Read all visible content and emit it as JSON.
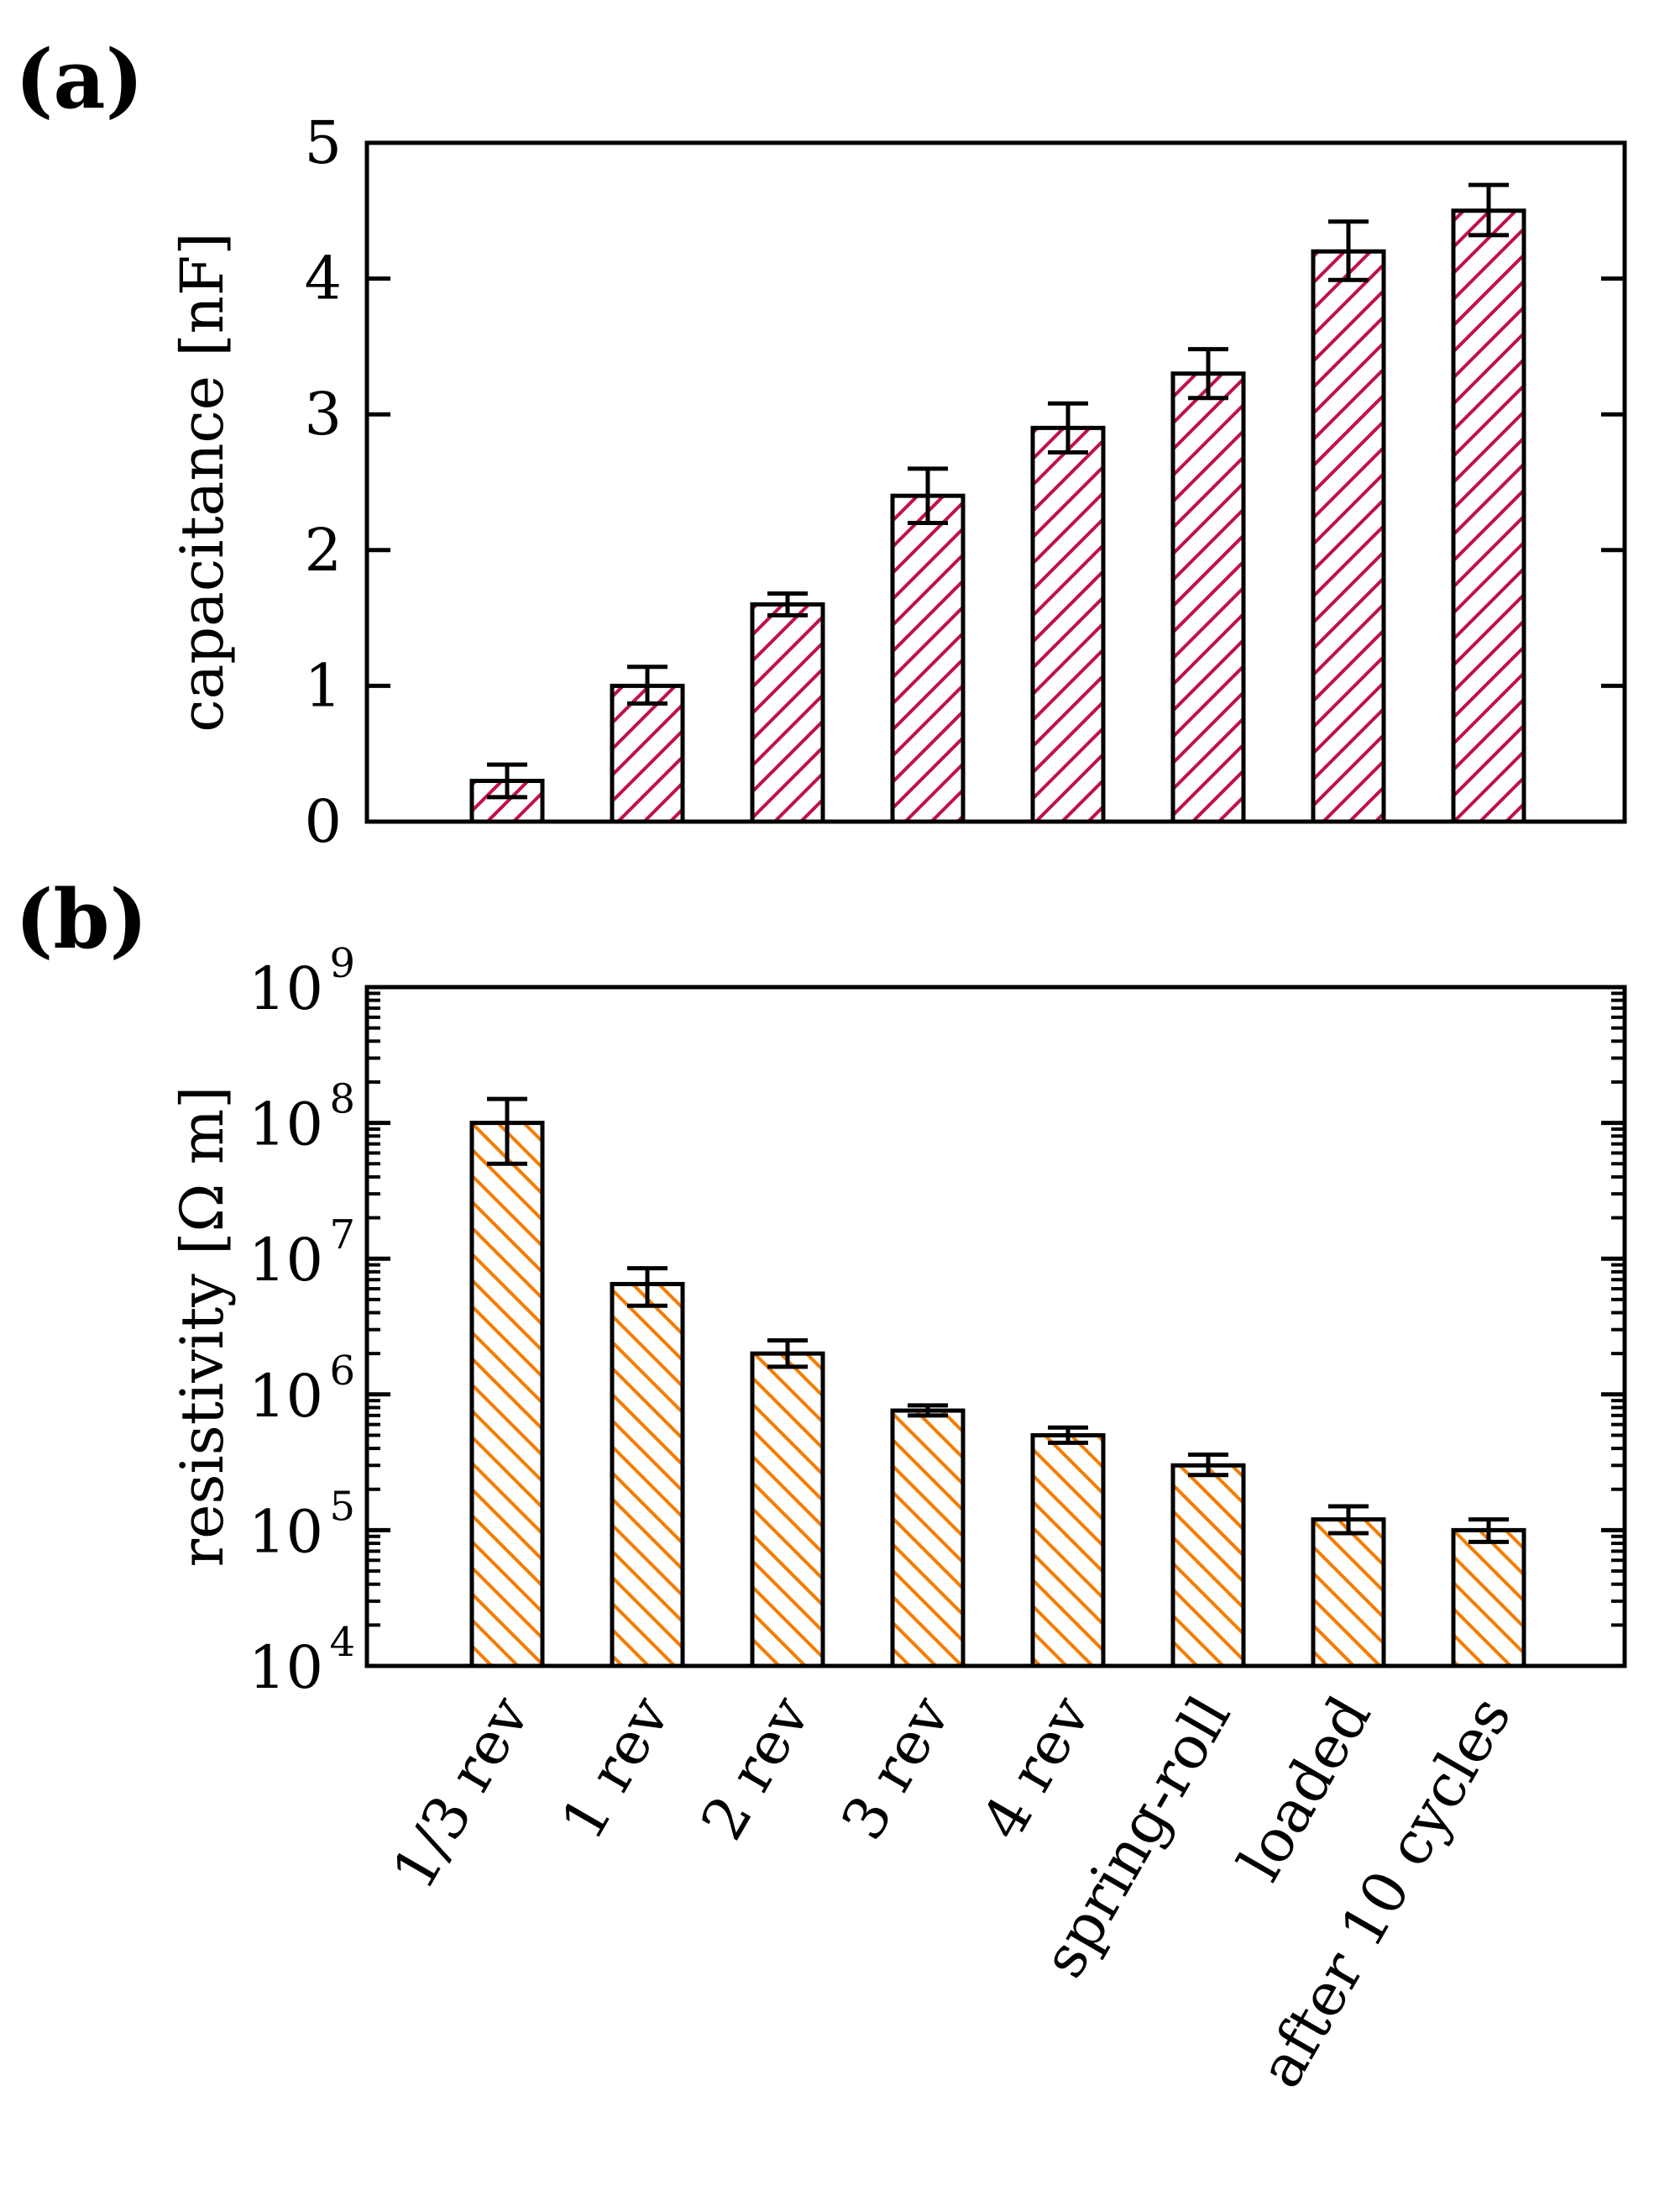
{
  "figure": {
    "panel_a_label": "(a)",
    "panel_b_label": "(b)"
  },
  "chart_data": [
    {
      "type": "bar",
      "panel": "(a)",
      "title": "",
      "xlabel": "",
      "ylabel": "capacitance [nF]",
      "ylim": [
        0,
        5
      ],
      "yticks": [
        0,
        1,
        2,
        3,
        4,
        5
      ],
      "ytick_labels": [
        "0",
        "1",
        "2",
        "3",
        "4",
        "5"
      ],
      "yscale": "linear",
      "grid": false,
      "categories": [
        "1/3 rev",
        "1 rev",
        "2 rev",
        "3 rev",
        "4 rev",
        "spring-roll",
        "loaded",
        "after 10 cycles"
      ],
      "series": [
        {
          "name": "capacitance",
          "values": [
            0.3,
            1.0,
            1.6,
            2.4,
            2.9,
            3.3,
            4.2,
            4.5
          ],
          "err_low": [
            0.18,
            0.87,
            1.52,
            2.2,
            2.72,
            3.12,
            3.99,
            4.32
          ],
          "err_high": [
            0.42,
            1.14,
            1.68,
            2.6,
            3.08,
            3.48,
            4.42,
            4.69
          ],
          "color": "#c0104e",
          "hatch": "forward-diagonal"
        }
      ]
    },
    {
      "type": "bar",
      "panel": "(b)",
      "title": "",
      "xlabel": "",
      "ylabel": "resistivity [Ω m]",
      "ylim": [
        10000,
        1000000000
      ],
      "yscale": "log",
      "yticks": [
        10000,
        100000,
        1000000,
        10000000,
        100000000,
        1000000000
      ],
      "ytick_labels": [
        {
          "base": "10",
          "exp": "4"
        },
        {
          "base": "10",
          "exp": "5"
        },
        {
          "base": "10",
          "exp": "6"
        },
        {
          "base": "10",
          "exp": "7"
        },
        {
          "base": "10",
          "exp": "8"
        },
        {
          "base": "10",
          "exp": "9"
        }
      ],
      "grid": false,
      "categories": [
        "1/3 rev",
        "1 rev",
        "2 rev",
        "3 rev",
        "4 rev",
        "spring-roll",
        "loaded",
        "after 10 cycles"
      ],
      "series": [
        {
          "name": "resistivity",
          "values": [
            100000000,
            6500000,
            2000000,
            760000,
            500000,
            300000,
            120000,
            100000
          ],
          "err_low": [
            50000000,
            4500000,
            1600000,
            700000,
            440000,
            255000,
            95000,
            82000
          ],
          "err_high": [
            150000000,
            8500000,
            2500000,
            830000,
            570000,
            360000,
            150000,
            120000
          ],
          "color": "#f57c00",
          "hatch": "backward-diagonal"
        }
      ]
    }
  ]
}
